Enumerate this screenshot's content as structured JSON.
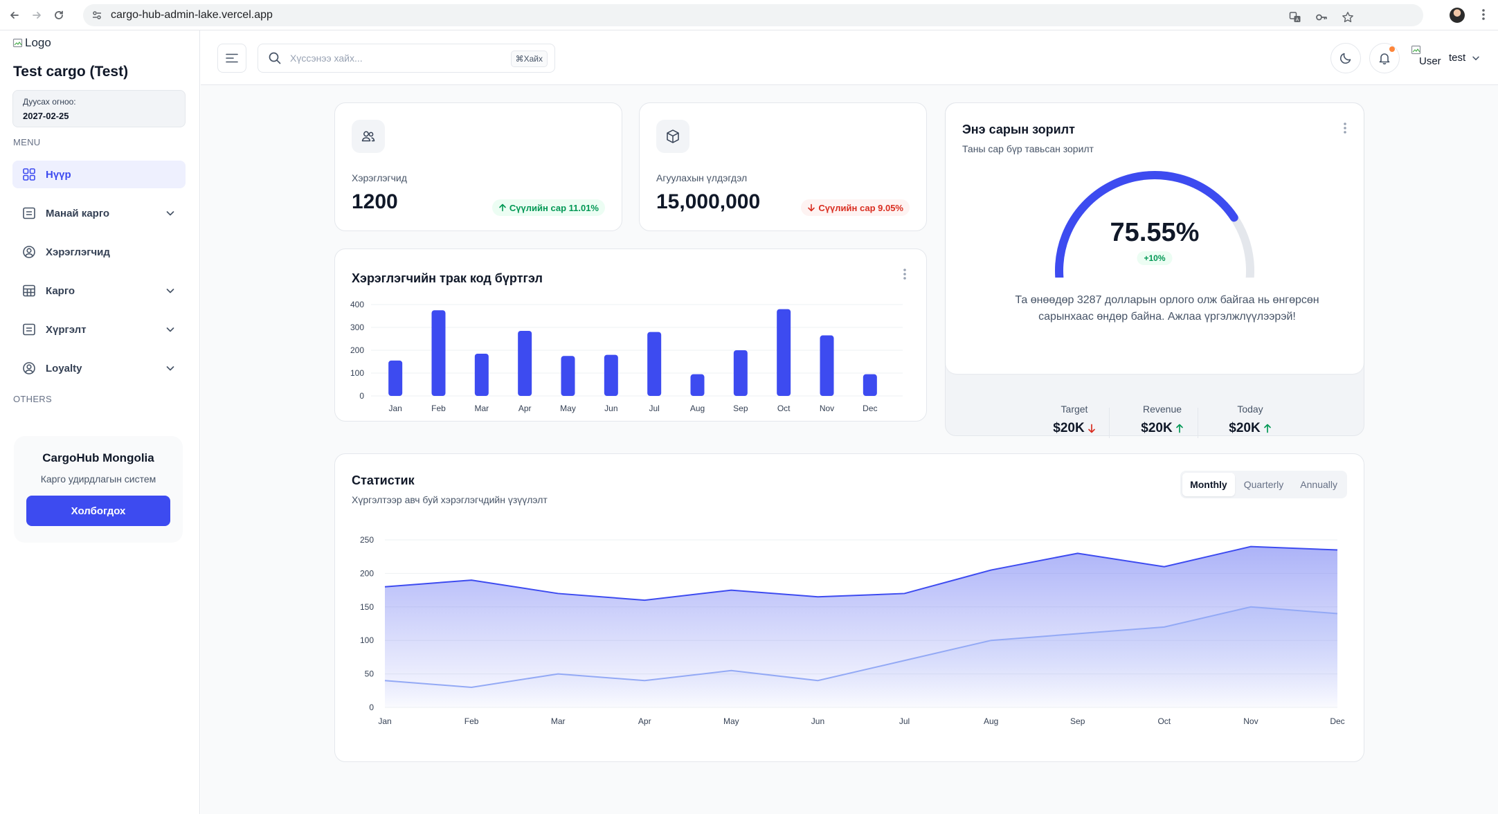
{
  "browser": {
    "url": "cargo-hub-admin-lake.vercel.app"
  },
  "sidebar": {
    "logo_alt": "Logo",
    "company": "Test cargo (Test)",
    "expire_label": "Дуусах огноо:",
    "expire_date": "2027-02-25",
    "menu_label": "MENU",
    "others_label": "OTHERS",
    "items": [
      {
        "label": "Нүүр",
        "icon": "grid-icon",
        "active": true,
        "has_submenu": false
      },
      {
        "label": "Манай карго",
        "icon": "list-icon",
        "active": false,
        "has_submenu": true
      },
      {
        "label": "Хэрэглэгчид",
        "icon": "user-circle-icon",
        "active": false,
        "has_submenu": false
      },
      {
        "label": "Карго",
        "icon": "table-icon",
        "active": false,
        "has_submenu": true
      },
      {
        "label": "Хүргэлт",
        "icon": "list-icon",
        "active": false,
        "has_submenu": true
      },
      {
        "label": "Loyalty",
        "icon": "user-circle-icon",
        "active": false,
        "has_submenu": true
      }
    ],
    "promo": {
      "title": "CargoHub Mongolia",
      "subtitle": "Карго удирдлагын систем",
      "button": "Холбогдох"
    }
  },
  "header": {
    "search_placeholder": "Хүссэнээ хайх...",
    "search_shortcut": "⌘Хайх",
    "user_img_alt": "User",
    "user_name": "test"
  },
  "metrics": [
    {
      "label": "Хэрэглэгчид",
      "value": "1200",
      "badge": "Сүүлийн сар 11.01%",
      "trend": "up",
      "icon": "users-icon"
    },
    {
      "label": "Агуулахын үлдэгдэл",
      "value": "15,000,000",
      "badge": "Сүүлийн сар 9.05%",
      "trend": "down",
      "icon": "box-icon"
    }
  ],
  "goal": {
    "title": "Энэ сарын зорилт",
    "subtitle": "Таны сар бүр тавьсан зорилт",
    "percent_label": "75.55%",
    "percent_value": 75.55,
    "change": "+10%",
    "message": "Та өнөөдөр 3287 долларын орлого олж байгаа нь өнгөрсөн сарынхаас өндөр байна. Ажлаа үргэлжлүүлээрэй!",
    "stats": [
      {
        "label": "Target",
        "value": "$20K",
        "trend": "down"
      },
      {
        "label": "Revenue",
        "value": "$20K",
        "trend": "up"
      },
      {
        "label": "Today",
        "value": "$20K",
        "trend": "up"
      }
    ]
  },
  "bar_card": {
    "title": "Хэрэглэгчийн трак код бүртгэл"
  },
  "stats_card": {
    "title": "Статистик",
    "subtitle": "Хүргэлтээр авч буй хэрэглэгчдийн үзүүлэлт",
    "tabs": [
      "Monthly",
      "Quarterly",
      "Annually"
    ],
    "active_tab": "Monthly"
  },
  "colors": {
    "accent": "#3d4bf0",
    "series2": "#93a9f5",
    "up": "#039855",
    "down": "#d92d20"
  },
  "chart_data": [
    {
      "type": "bar",
      "title": "Хэрэглэгчийн трак код бүртгэл",
      "categories": [
        "Jan",
        "Feb",
        "Mar",
        "Apr",
        "May",
        "Jun",
        "Jul",
        "Aug",
        "Sep",
        "Oct",
        "Nov",
        "Dec"
      ],
      "values": [
        155,
        375,
        185,
        285,
        175,
        180,
        280,
        95,
        200,
        380,
        265,
        95
      ],
      "yticks": [
        0,
        100,
        200,
        300,
        400
      ],
      "ylim": [
        0,
        400
      ],
      "grid": true
    },
    {
      "type": "area",
      "title": "Статистик",
      "categories": [
        "Jan",
        "Feb",
        "Mar",
        "Apr",
        "May",
        "Jun",
        "Jul",
        "Aug",
        "Sep",
        "Oct",
        "Nov",
        "Dec"
      ],
      "series": [
        {
          "values": [
            180,
            190,
            170,
            160,
            175,
            165,
            170,
            205,
            230,
            210,
            240,
            235
          ]
        },
        {
          "values": [
            40,
            30,
            50,
            40,
            55,
            40,
            70,
            100,
            110,
            120,
            150,
            140
          ]
        }
      ],
      "yticks": [
        0,
        50,
        100,
        150,
        200,
        250
      ],
      "ylim": [
        0,
        250
      ],
      "grid": true
    }
  ]
}
